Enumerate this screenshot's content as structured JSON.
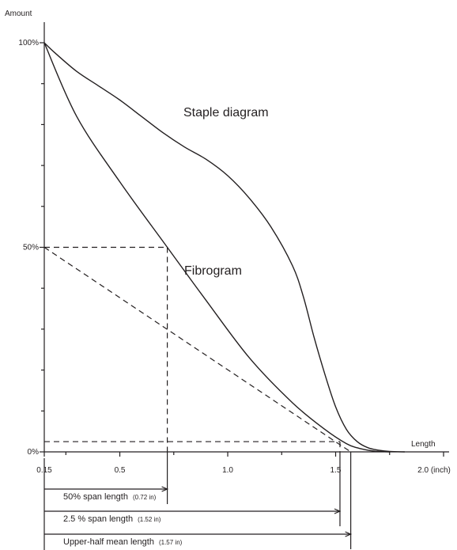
{
  "chart_data": {
    "type": "line",
    "xlabel": "Length",
    "ylabel": "Amount",
    "xlim": [
      0.15,
      2.0
    ],
    "ylim": [
      0,
      100
    ],
    "x_ticks": [
      {
        "value": 0.15,
        "label": "0.15"
      },
      {
        "value": 0.5,
        "label": "0.5"
      },
      {
        "value": 1.0,
        "label": "1.0"
      },
      {
        "value": 1.5,
        "label": "1.5"
      },
      {
        "value": 2.0,
        "label": "2.0 (inch)"
      }
    ],
    "x_minor_ticks": [
      0.25,
      0.75,
      1.25,
      1.75
    ],
    "y_ticks": [
      {
        "value": 0,
        "label": "0%"
      },
      {
        "value": 50,
        "label": "50%"
      },
      {
        "value": 100,
        "label": "100%"
      }
    ],
    "y_minor_ticks": [
      10,
      20,
      30,
      40,
      60,
      70,
      80,
      90
    ],
    "grid": false,
    "series": [
      {
        "name": "Staple diagram",
        "x": [
          0.15,
          0.2,
          0.3,
          0.4,
          0.5,
          0.6,
          0.7,
          0.8,
          0.9,
          1.0,
          1.1,
          1.2,
          1.3,
          1.35,
          1.4,
          1.45,
          1.5,
          1.55,
          1.6,
          1.65,
          1.7,
          1.75,
          1.82
        ],
        "y": [
          100,
          97.5,
          93,
          89.5,
          86,
          82,
          78,
          74.5,
          71.5,
          67.5,
          62,
          55,
          45.5,
          38,
          28,
          19,
          11,
          5.5,
          2.5,
          1,
          0.4,
          0.1,
          0
        ]
      },
      {
        "name": "Fibrogram",
        "x": [
          0.15,
          0.3,
          0.5,
          0.72,
          0.9,
          1.1,
          1.3,
          1.45,
          1.55,
          1.6,
          1.65,
          1.7,
          1.75
        ],
        "y": [
          100,
          82,
          66,
          50,
          37,
          23,
          12,
          5.5,
          2,
          1,
          0.4,
          0.1,
          0
        ]
      }
    ],
    "dashed_lines": [
      {
        "from": [
          0.15,
          50
        ],
        "to": [
          0.72,
          50
        ]
      },
      {
        "from": [
          0.72,
          50
        ],
        "to": [
          0.72,
          0
        ]
      },
      {
        "from": [
          0.15,
          50
        ],
        "to": [
          1.57,
          0
        ]
      },
      {
        "from": [
          0.15,
          2.5
        ],
        "to": [
          1.52,
          2.5
        ]
      },
      {
        "from": [
          1.52,
          2.5
        ],
        "to": [
          1.52,
          0
        ]
      }
    ],
    "span_annotations": [
      {
        "label": "50% span length",
        "value_label": "(0.72 in)",
        "x": 0.72
      },
      {
        "label": "2.5 % span length",
        "value_label": "(1.52 in)",
        "x": 1.52
      },
      {
        "label": "Upper-half mean length",
        "value_label": "(1.57 in)",
        "x": 1.57
      }
    ]
  }
}
